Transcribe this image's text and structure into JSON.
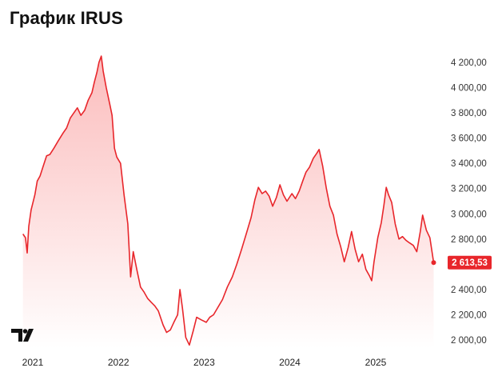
{
  "header": {
    "title": "График IRUS"
  },
  "colors": {
    "line": "#e8262b",
    "fill_top": "#fbb9b9",
    "fill_bottom": "#ffffff",
    "label_bg": "#e8262b"
  },
  "logo": {
    "name": "tradingview-logo"
  },
  "chart_data": {
    "type": "area",
    "title": "График IRUS",
    "xlabel": "",
    "ylabel": "",
    "ylim": [
      1970,
      4300
    ],
    "x_ticks": [
      "2021",
      "2022",
      "2023",
      "2024",
      "2025"
    ],
    "y_ticks": [
      "2 000,00",
      "2 200,00",
      "2 400,00",
      "2 600,00",
      "2 800,00",
      "3 000,00",
      "3 200,00",
      "3 400,00",
      "3 600,00",
      "3 800,00",
      "4 000,00",
      "4 200,00"
    ],
    "y_tick_values": [
      2000,
      2200,
      2400,
      2600,
      2800,
      3000,
      3200,
      3400,
      3600,
      3800,
      4000,
      4200
    ],
    "last_price_label": "2 613,53",
    "last_price": 2613.53,
    "grid": false,
    "series": [
      {
        "points": [
          [
            "2020-11-20",
            2840
          ],
          [
            "2020-12-01",
            2810
          ],
          [
            "2020-12-08",
            2690
          ],
          [
            "2020-12-15",
            2900
          ],
          [
            "2020-12-25",
            3030
          ],
          [
            "2021-01-10",
            3150
          ],
          [
            "2021-01-20",
            3260
          ],
          [
            "2021-02-01",
            3300
          ],
          [
            "2021-02-15",
            3380
          ],
          [
            "2021-03-01",
            3460
          ],
          [
            "2021-03-15",
            3470
          ],
          [
            "2021-04-01",
            3520
          ],
          [
            "2021-04-20",
            3580
          ],
          [
            "2021-05-10",
            3640
          ],
          [
            "2021-05-25",
            3680
          ],
          [
            "2021-06-10",
            3760
          ],
          [
            "2021-06-25",
            3800
          ],
          [
            "2021-07-10",
            3840
          ],
          [
            "2021-07-25",
            3780
          ],
          [
            "2021-08-10",
            3820
          ],
          [
            "2021-08-25",
            3900
          ],
          [
            "2021-09-10",
            3960
          ],
          [
            "2021-09-20",
            4040
          ],
          [
            "2021-10-01",
            4120
          ],
          [
            "2021-10-10",
            4200
          ],
          [
            "2021-10-20",
            4250
          ],
          [
            "2021-10-28",
            4130
          ],
          [
            "2021-11-10",
            4000
          ],
          [
            "2021-11-25",
            3870
          ],
          [
            "2021-12-05",
            3780
          ],
          [
            "2021-12-15",
            3520
          ],
          [
            "2021-12-25",
            3450
          ],
          [
            "2022-01-10",
            3400
          ],
          [
            "2022-01-25",
            3150
          ],
          [
            "2022-02-10",
            2920
          ],
          [
            "2022-02-22",
            2500
          ],
          [
            "2022-03-05",
            2700
          ],
          [
            "2022-03-20",
            2560
          ],
          [
            "2022-04-05",
            2420
          ],
          [
            "2022-04-20",
            2380
          ],
          [
            "2022-05-05",
            2330
          ],
          [
            "2022-05-20",
            2300
          ],
          [
            "2022-06-05",
            2270
          ],
          [
            "2022-06-20",
            2230
          ],
          [
            "2022-07-10",
            2120
          ],
          [
            "2022-07-25",
            2060
          ],
          [
            "2022-08-10",
            2080
          ],
          [
            "2022-08-25",
            2140
          ],
          [
            "2022-09-10",
            2200
          ],
          [
            "2022-09-20",
            2400
          ],
          [
            "2022-10-01",
            2250
          ],
          [
            "2022-10-15",
            2020
          ],
          [
            "2022-10-30",
            1960
          ],
          [
            "2022-11-15",
            2070
          ],
          [
            "2022-11-30",
            2180
          ],
          [
            "2022-12-20",
            2160
          ],
          [
            "2023-01-10",
            2140
          ],
          [
            "2023-01-25",
            2180
          ],
          [
            "2023-02-10",
            2200
          ],
          [
            "2023-03-01",
            2260
          ],
          [
            "2023-03-20",
            2320
          ],
          [
            "2023-04-10",
            2420
          ],
          [
            "2023-05-01",
            2500
          ],
          [
            "2023-05-20",
            2600
          ],
          [
            "2023-06-10",
            2720
          ],
          [
            "2023-07-01",
            2850
          ],
          [
            "2023-07-20",
            2970
          ],
          [
            "2023-08-05",
            3110
          ],
          [
            "2023-08-20",
            3210
          ],
          [
            "2023-09-05",
            3160
          ],
          [
            "2023-09-20",
            3180
          ],
          [
            "2023-10-05",
            3140
          ],
          [
            "2023-10-20",
            3060
          ],
          [
            "2023-11-05",
            3130
          ],
          [
            "2023-11-20",
            3230
          ],
          [
            "2023-12-05",
            3150
          ],
          [
            "2023-12-20",
            3100
          ],
          [
            "2024-01-10",
            3160
          ],
          [
            "2024-01-25",
            3120
          ],
          [
            "2024-02-10",
            3180
          ],
          [
            "2024-02-25",
            3260
          ],
          [
            "2024-03-10",
            3330
          ],
          [
            "2024-03-25",
            3370
          ],
          [
            "2024-04-10",
            3440
          ],
          [
            "2024-04-25",
            3480
          ],
          [
            "2024-05-05",
            3510
          ],
          [
            "2024-05-20",
            3380
          ],
          [
            "2024-06-05",
            3200
          ],
          [
            "2024-06-20",
            3060
          ],
          [
            "2024-07-05",
            2990
          ],
          [
            "2024-07-20",
            2840
          ],
          [
            "2024-08-05",
            2740
          ],
          [
            "2024-08-20",
            2620
          ],
          [
            "2024-09-05",
            2730
          ],
          [
            "2024-09-20",
            2860
          ],
          [
            "2024-10-05",
            2720
          ],
          [
            "2024-10-20",
            2620
          ],
          [
            "2024-11-05",
            2680
          ],
          [
            "2024-11-20",
            2560
          ],
          [
            "2024-12-05",
            2510
          ],
          [
            "2024-12-15",
            2470
          ],
          [
            "2024-12-25",
            2620
          ],
          [
            "2025-01-10",
            2810
          ],
          [
            "2025-01-25",
            2930
          ],
          [
            "2025-02-05",
            3070
          ],
          [
            "2025-02-15",
            3210
          ],
          [
            "2025-02-25",
            3150
          ],
          [
            "2025-03-10",
            3090
          ],
          [
            "2025-03-25",
            2920
          ],
          [
            "2025-04-10",
            2800
          ],
          [
            "2025-04-25",
            2820
          ],
          [
            "2025-05-10",
            2790
          ],
          [
            "2025-05-25",
            2770
          ],
          [
            "2025-06-10",
            2750
          ],
          [
            "2025-06-25",
            2700
          ],
          [
            "2025-07-10",
            2860
          ],
          [
            "2025-07-20",
            2990
          ],
          [
            "2025-08-05",
            2870
          ],
          [
            "2025-08-20",
            2810
          ],
          [
            "2025-09-05",
            2613.53
          ]
        ]
      }
    ]
  }
}
